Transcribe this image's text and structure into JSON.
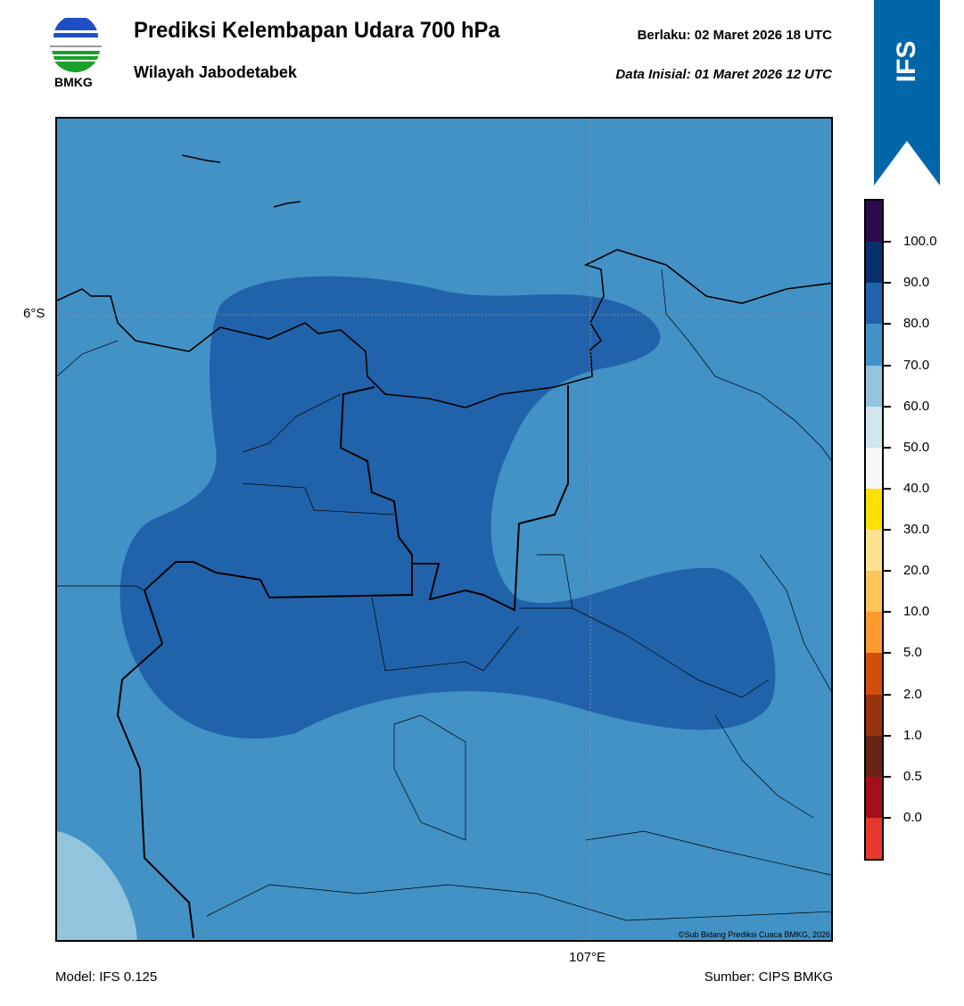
{
  "header": {
    "title": "Prediksi Kelembapan Udara 700 hPa",
    "subtitle": "Wilayah Jabodetabek",
    "valid": "Berlaku:  02 Maret 2026 18 UTC",
    "initial": "Data Inisial:  01 Maret 2026 12 UTC",
    "logo_text": "BMKG",
    "badge": "IFS"
  },
  "map": {
    "lat_label": "6°S",
    "lon_label": "107°E",
    "copyright": "©Sub Bidang Prediksi Cuaca BMKG, 2026",
    "colors": {
      "background": "#4292c6",
      "dense": "#2163ab",
      "light": "#92c4de"
    }
  },
  "footer": {
    "model": "Model: IFS 0.125",
    "source": "Sumber: CIPS BMKG"
  },
  "colorbar": {
    "colors": [
      "#2d0a4e",
      "#08306b",
      "#2163ab",
      "#4292c6",
      "#92c4de",
      "#d1e5f0",
      "#f7f7f7",
      "#ffe000",
      "#ffe291",
      "#ffc558",
      "#ff9a2e",
      "#d24e0a",
      "#97330f",
      "#67250f",
      "#a50f15",
      "#e5392e"
    ],
    "labels": [
      "100.0",
      "90.0",
      "80.0",
      "70.0",
      "60.0",
      "50.0",
      "40.0",
      "30.0",
      "20.0",
      "10.0",
      "5.0",
      "2.0",
      "1.0",
      "0.5",
      "0.0"
    ]
  }
}
